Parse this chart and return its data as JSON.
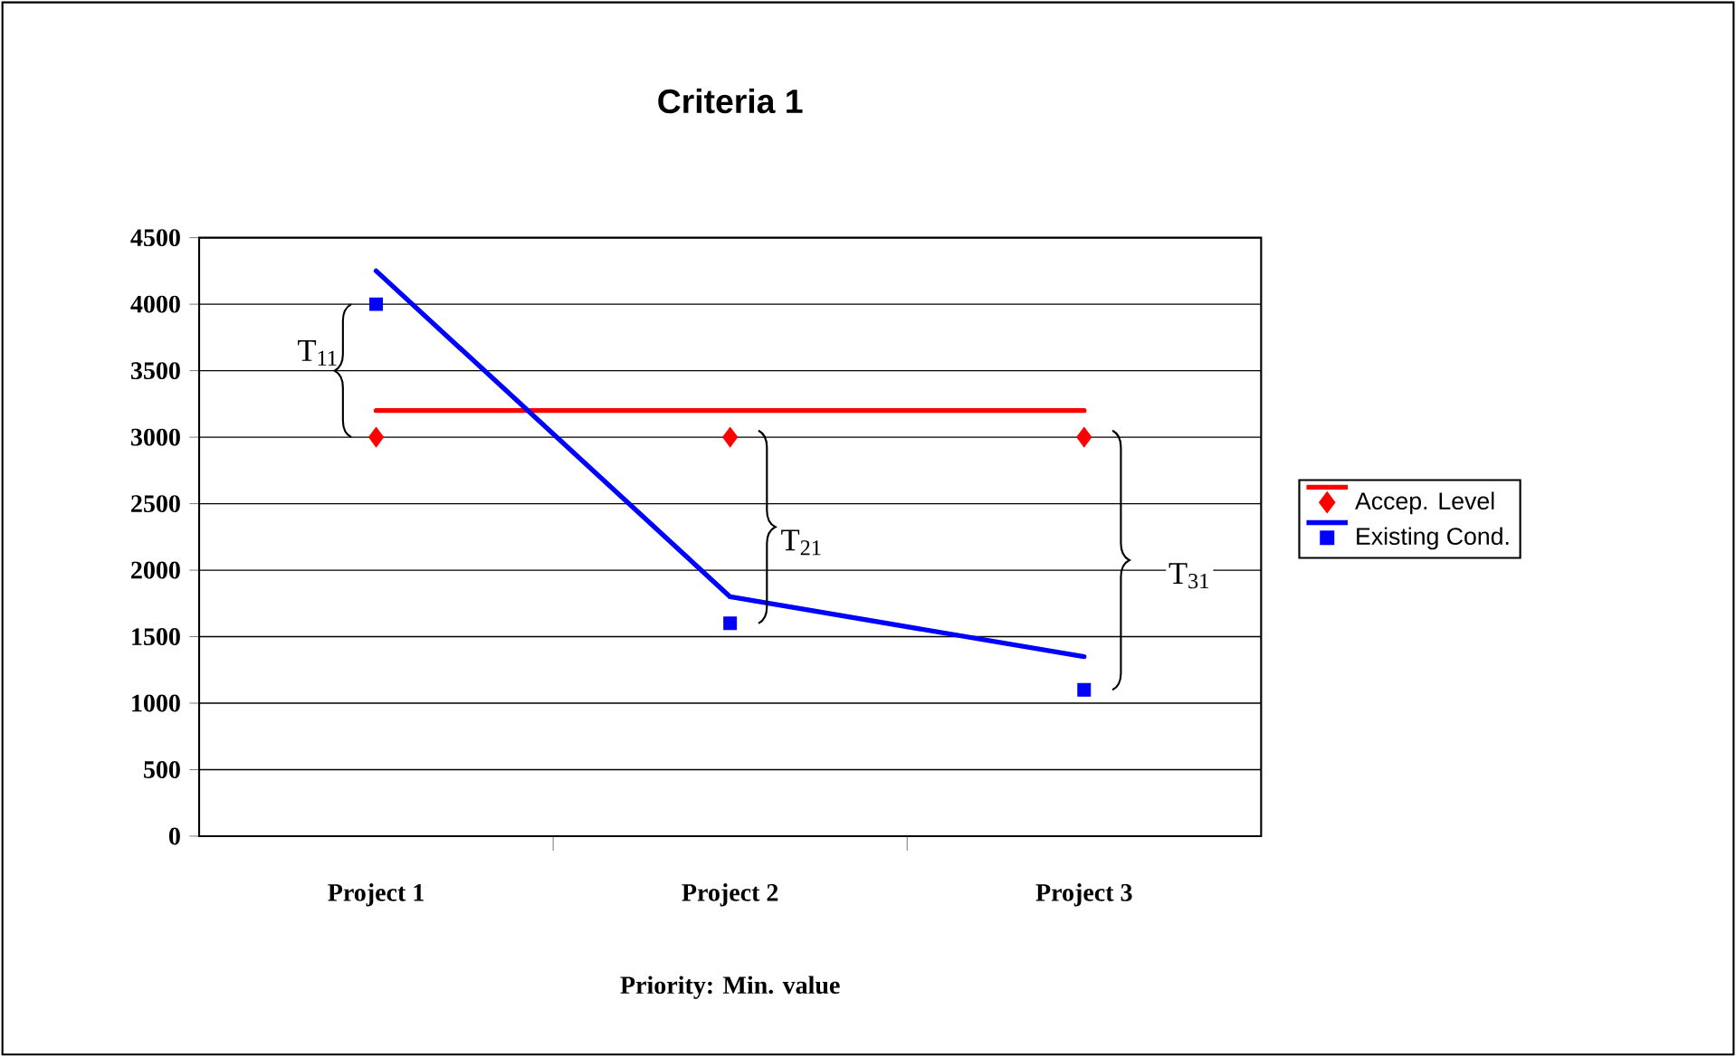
{
  "chart_data": {
    "type": "line",
    "title": "Criteria 1",
    "xlabel": "Priority: Min. value",
    "categories": [
      "Project 1",
      "Project 2",
      "Project 3"
    ],
    "ylim": [
      0,
      4500
    ],
    "yticks": [
      0,
      500,
      1000,
      1500,
      2000,
      2500,
      3000,
      3500,
      4000,
      4500
    ],
    "grid": "y",
    "legend": "right",
    "series": [
      {
        "color": "#ff0000",
        "values": [
          3200,
          3200,
          3200
        ],
        "marker": "none"
      },
      {
        "type": "scatter",
        "name": "Accep. Level",
        "color": "#ff0000",
        "values": [
          3000,
          3000,
          3000
        ],
        "marker": "diamond"
      },
      {
        "color": "#0000ff",
        "values": [
          4250,
          1800,
          1350
        ],
        "marker": "none"
      },
      {
        "type": "scatter",
        "name": "Existing Cond.",
        "color": "#0000ff",
        "values": [
          4000,
          1600,
          1100
        ],
        "marker": "square"
      }
    ],
    "annotations": [
      "T$_{11}$",
      "T$_{21}$",
      "T$_{31}$"
    ]
  }
}
